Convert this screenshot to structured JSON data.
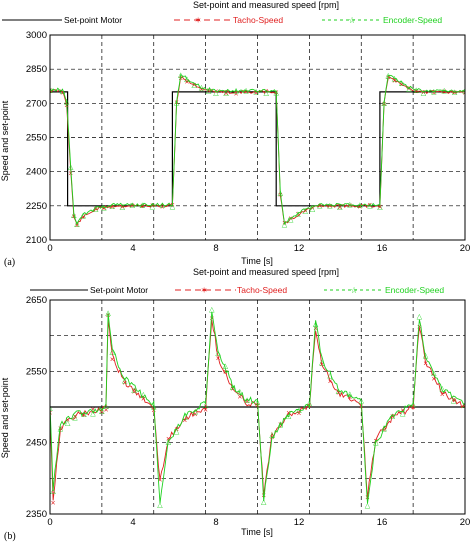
{
  "chart_data": [
    {
      "type": "line",
      "panel_label": "(a)",
      "title": "Set-point and measured speed [rpm]",
      "xlabel": "Time [s]",
      "ylabel": "Speed and set-point",
      "xlim": [
        0,
        20
      ],
      "ylim": [
        2100,
        3000
      ],
      "x_ticks": [
        "0",
        "4",
        "8",
        "12",
        "16",
        "20"
      ],
      "y_ticks": [
        "2100",
        "2250",
        "2400",
        "2550",
        "2700",
        "2850",
        "3000"
      ],
      "grid": true,
      "legend": "top",
      "series": [
        {
          "name": "Set-point Motor",
          "color": "#000000",
          "points": [
            [
              0,
              2750
            ],
            [
              0.85,
              2750
            ],
            [
              0.85,
              2250
            ],
            [
              5.9,
              2250
            ],
            [
              5.9,
              2750
            ],
            [
              10.9,
              2750
            ],
            [
              10.9,
              2250
            ],
            [
              15.9,
              2250
            ],
            [
              15.9,
              2750
            ],
            [
              20,
              2750
            ]
          ]
        },
        {
          "name": "Tacho-Speed",
          "color": "#e02020",
          "points": [
            [
              0,
              2755
            ],
            [
              0.6,
              2755
            ],
            [
              0.8,
              2700
            ],
            [
              1,
              2400
            ],
            [
              1.15,
              2200
            ],
            [
              1.3,
              2170
            ],
            [
              1.6,
              2200
            ],
            [
              2.2,
              2235
            ],
            [
              3,
              2250
            ],
            [
              5.9,
              2250
            ],
            [
              6.1,
              2700
            ],
            [
              6.3,
              2815
            ],
            [
              6.6,
              2800
            ],
            [
              7.3,
              2765
            ],
            [
              8,
              2750
            ],
            [
              10.9,
              2750
            ],
            [
              11.1,
              2300
            ],
            [
              11.3,
              2170
            ],
            [
              11.6,
              2190
            ],
            [
              12.3,
              2230
            ],
            [
              13,
              2250
            ],
            [
              15.9,
              2250
            ],
            [
              16.1,
              2700
            ],
            [
              16.3,
              2815
            ],
            [
              16.6,
              2800
            ],
            [
              17.3,
              2765
            ],
            [
              18,
              2750
            ],
            [
              20,
              2750
            ]
          ]
        },
        {
          "name": "Encoder-Speed",
          "color": "#1fd11f",
          "points": [
            [
              0,
              2760
            ],
            [
              0.6,
              2760
            ],
            [
              0.8,
              2710
            ],
            [
              1,
              2420
            ],
            [
              1.15,
              2210
            ],
            [
              1.3,
              2175
            ],
            [
              1.6,
              2210
            ],
            [
              2.2,
              2240
            ],
            [
              3,
              2255
            ],
            [
              5.9,
              2255
            ],
            [
              6.1,
              2710
            ],
            [
              6.3,
              2825
            ],
            [
              6.6,
              2810
            ],
            [
              7.3,
              2770
            ],
            [
              8,
              2755
            ],
            [
              10.9,
              2755
            ],
            [
              11.1,
              2310
            ],
            [
              11.3,
              2175
            ],
            [
              11.6,
              2195
            ],
            [
              12.3,
              2235
            ],
            [
              13,
              2255
            ],
            [
              15.9,
              2255
            ],
            [
              16.1,
              2710
            ],
            [
              16.3,
              2825
            ],
            [
              16.6,
              2810
            ],
            [
              17.3,
              2770
            ],
            [
              18,
              2755
            ],
            [
              20,
              2755
            ]
          ]
        }
      ]
    },
    {
      "type": "line",
      "panel_label": "(b)",
      "title": "Set-point and measured speed [rpm]",
      "xlabel": "Time [s]",
      "ylabel": "Speed and set-point",
      "xlim": [
        0,
        20
      ],
      "ylim": [
        2350,
        2650
      ],
      "x_ticks": [
        "0",
        "4",
        "8",
        "12",
        "16",
        "20"
      ],
      "y_ticks": [
        "2350",
        "2450",
        "2550",
        "2650"
      ],
      "grid": true,
      "legend": "top",
      "series": [
        {
          "name": "Set-point Motor",
          "color": "#000000",
          "points": [
            [
              0,
              2500
            ],
            [
              20,
              2500
            ]
          ]
        },
        {
          "name": "Tacho-Speed",
          "color": "#e02020",
          "points": [
            [
              0,
              2495
            ],
            [
              0.15,
              2370
            ],
            [
              0.5,
              2470
            ],
            [
              1.2,
              2488
            ],
            [
              2.5,
              2496
            ],
            [
              2.7,
              2500
            ],
            [
              2.8,
              2625
            ],
            [
              3,
              2570
            ],
            [
              3.6,
              2535
            ],
            [
              4.5,
              2510
            ],
            [
              5,
              2500
            ],
            [
              5.3,
              2395
            ],
            [
              5.7,
              2455
            ],
            [
              6.5,
              2485
            ],
            [
              7.5,
              2500
            ],
            [
              7.8,
              2625
            ],
            [
              8.1,
              2570
            ],
            [
              8.8,
              2525
            ],
            [
              9.5,
              2505
            ],
            [
              10,
              2505
            ],
            [
              10.3,
              2380
            ],
            [
              10.7,
              2460
            ],
            [
              11.5,
              2488
            ],
            [
              12.5,
              2500
            ],
            [
              12.8,
              2610
            ],
            [
              13.1,
              2560
            ],
            [
              13.9,
              2520
            ],
            [
              15,
              2505
            ],
            [
              15.3,
              2375
            ],
            [
              15.7,
              2455
            ],
            [
              16.5,
              2485
            ],
            [
              17.5,
              2500
            ],
            [
              17.8,
              2615
            ],
            [
              18.1,
              2565
            ],
            [
              18.9,
              2520
            ],
            [
              20,
              2500
            ]
          ]
        },
        {
          "name": "Encoder-Speed",
          "color": "#1fd11f",
          "points": [
            [
              0,
              2500
            ],
            [
              0.15,
              2385
            ],
            [
              0.5,
              2475
            ],
            [
              1.2,
              2490
            ],
            [
              2.5,
              2498
            ],
            [
              2.7,
              2505
            ],
            [
              2.8,
              2635
            ],
            [
              3,
              2580
            ],
            [
              3.6,
              2540
            ],
            [
              4.5,
              2515
            ],
            [
              5,
              2505
            ],
            [
              5.3,
              2365
            ],
            [
              5.7,
              2450
            ],
            [
              6.5,
              2488
            ],
            [
              7.5,
              2505
            ],
            [
              7.8,
              2635
            ],
            [
              8.1,
              2580
            ],
            [
              8.8,
              2530
            ],
            [
              9.5,
              2510
            ],
            [
              10,
              2508
            ],
            [
              10.3,
              2372
            ],
            [
              10.7,
              2458
            ],
            [
              11.5,
              2490
            ],
            [
              12.5,
              2503
            ],
            [
              12.8,
              2620
            ],
            [
              13.1,
              2568
            ],
            [
              13.9,
              2525
            ],
            [
              15,
              2508
            ],
            [
              15.3,
              2365
            ],
            [
              15.7,
              2450
            ],
            [
              16.5,
              2488
            ],
            [
              17.5,
              2503
            ],
            [
              17.8,
              2625
            ],
            [
              18.1,
              2572
            ],
            [
              18.9,
              2525
            ],
            [
              20,
              2503
            ]
          ]
        }
      ]
    }
  ]
}
